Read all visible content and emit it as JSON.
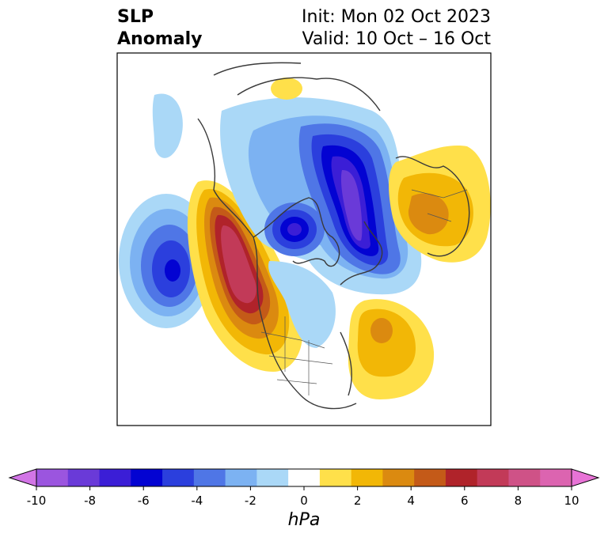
{
  "title": {
    "left_line1": "SLP",
    "left_line2": "Anomaly",
    "right_line1": "Init: Mon 02 Oct 2023",
    "right_line2": "Valid: 10 Oct – 16 Oct"
  },
  "colorbar": {
    "unit": "hPa",
    "ticks": [
      "-10",
      "-8",
      "-6",
      "-4",
      "-2",
      "0",
      "2",
      "4",
      "6",
      "8",
      "10"
    ],
    "colors": [
      "#d275e6",
      "#9b55df",
      "#6a3ad8",
      "#3b1ed6",
      "#0303d2",
      "#2b3fdd",
      "#4f76e6",
      "#7cb2f2",
      "#aad8f7",
      "#ffffff",
      "#ffe04a",
      "#f2b706",
      "#db8a10",
      "#c45a18",
      "#b0232a",
      "#c23a58",
      "#cf5287",
      "#dc64b0",
      "#e873d6"
    ]
  },
  "map": {
    "anomalies": [
      {
        "name": "arctic-siberia-low",
        "sign": "negative",
        "min_hpa": -9
      },
      {
        "name": "hudson-bay-low",
        "sign": "negative",
        "min_hpa": -7
      },
      {
        "name": "north-pacific-low",
        "sign": "negative",
        "min_hpa": -7
      },
      {
        "name": "gulf-of-alaska-high",
        "sign": "positive",
        "max_hpa": 7
      },
      {
        "name": "europe-high",
        "sign": "positive",
        "max_hpa": 4
      },
      {
        "name": "north-atlantic-high",
        "sign": "positive",
        "max_hpa": 3
      }
    ]
  }
}
